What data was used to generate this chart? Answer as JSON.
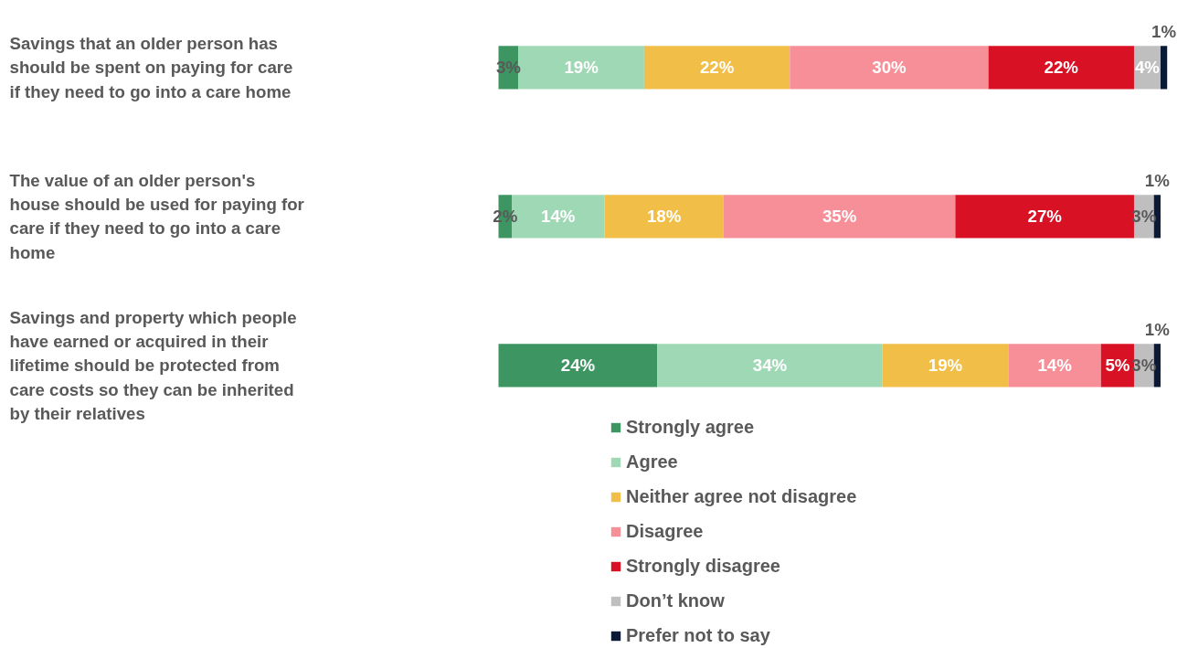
{
  "chart_data": {
    "type": "bar",
    "orientation": "horizontal",
    "stacked": true,
    "legend": "bottom",
    "grid": false,
    "categories": [
      "Savings that an older person has should be spent on paying for care if they need to go into a care home",
      "The value of an older person's house should be used for paying for care if they need to go into a care home",
      "Savings and property which people have earned or acquired in their lifetime should be protected from care costs so they can be inherited by their relatives"
    ],
    "series": [
      {
        "name": "Strongly agree",
        "color": "#3d9561",
        "values": [
          3,
          2,
          24
        ],
        "value_labels": [
          "3%",
          "2%",
          "24%"
        ]
      },
      {
        "name": "Agree",
        "color": "#9fd8b5",
        "values": [
          19,
          14,
          34
        ],
        "value_labels": [
          "19%",
          "14%",
          "34%"
        ]
      },
      {
        "name": "Neither agree not disagree",
        "color": "#f1be48",
        "values": [
          22,
          18,
          19
        ],
        "value_labels": [
          "22%",
          "18%",
          "19%"
        ]
      },
      {
        "name": "Disagree",
        "color": "#f78f98",
        "values": [
          30,
          35,
          14
        ],
        "value_labels": [
          "30%",
          "35%",
          "14%"
        ]
      },
      {
        "name": "Strongly disagree",
        "color": "#d81125",
        "values": [
          22,
          27,
          5
        ],
        "value_labels": [
          "22%",
          "27%",
          "5%"
        ]
      },
      {
        "name": "Don’t know",
        "color": "#bfbfbf",
        "values": [
          4,
          3,
          3
        ],
        "value_labels": [
          "4%",
          "3%",
          "3%"
        ]
      },
      {
        "name": "Prefer not to say",
        "color": "#0a1a36",
        "values": [
          1,
          1,
          1
        ],
        "value_labels": [
          "1%",
          "1%",
          "1%"
        ]
      }
    ]
  }
}
